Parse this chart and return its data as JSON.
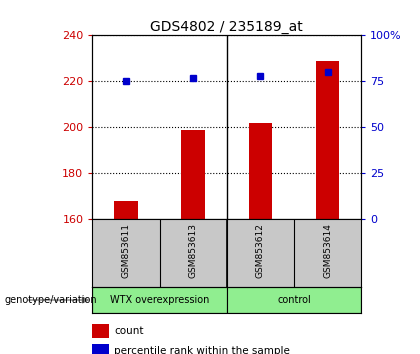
{
  "title": "GDS4802 / 235189_at",
  "samples": [
    "GSM853611",
    "GSM853613",
    "GSM853612",
    "GSM853614"
  ],
  "bar_values": [
    168,
    199,
    202,
    229
  ],
  "percentile_values": [
    75,
    77,
    78,
    80
  ],
  "group_labels": [
    "WTX overexpression",
    "control"
  ],
  "ylim_left": [
    160,
    240
  ],
  "ylim_right": [
    0,
    100
  ],
  "yticks_left": [
    160,
    180,
    200,
    220,
    240
  ],
  "yticks_right": [
    0,
    25,
    50,
    75,
    100
  ],
  "ytick_labels_right": [
    "0",
    "25",
    "50",
    "75",
    "100%"
  ],
  "bar_color": "#cc0000",
  "dot_color": "#0000cc",
  "bar_width": 0.35,
  "left_tick_color": "#cc0000",
  "right_tick_color": "#0000cc",
  "legend_count_label": "count",
  "legend_pct_label": "percentile rank within the sample",
  "annotation_label": "genotype/variation",
  "sample_bg_color": "#c8c8c8",
  "group1_color": "#90EE90",
  "group2_color": "#90EE90",
  "plot_bg_color": "#ffffff",
  "border_color": "#000000",
  "title_fontsize": 10,
  "tick_fontsize": 8,
  "label_fontsize": 7.5,
  "legend_fontsize": 7.5
}
